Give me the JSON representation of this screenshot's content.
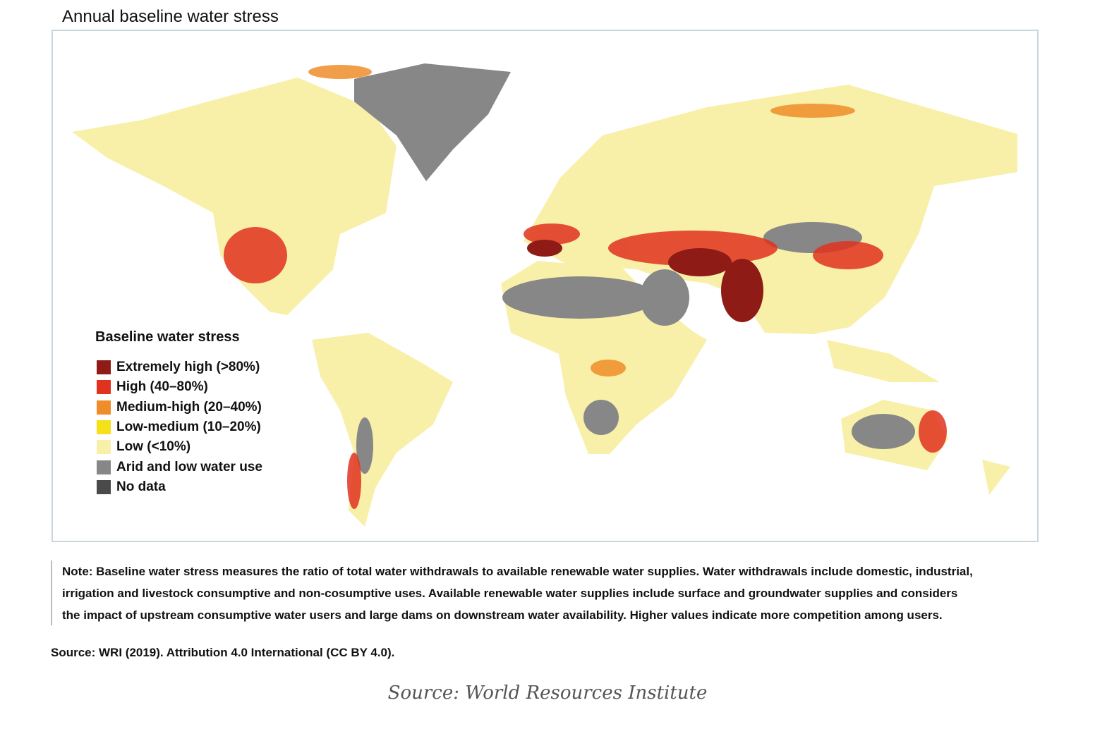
{
  "title": "Annual baseline water stress",
  "legend": {
    "title": "Baseline water stress",
    "items": [
      {
        "label": "Extremely high (>80%)",
        "color": "#8e1b16"
      },
      {
        "label": "High (40–80%)",
        "color": "#e0321f"
      },
      {
        "label": "Medium-high (20–40%)",
        "color": "#ef8d2a"
      },
      {
        "label": "Low-medium (10–20%)",
        "color": "#f6e01a"
      },
      {
        "label": "Low (<10%)",
        "color": "#f8f0a9"
      },
      {
        "label": "Arid and low water use",
        "color": "#878787"
      },
      {
        "label": "No data",
        "color": "#4a4a4a"
      }
    ]
  },
  "note": {
    "lines": [
      "Note: Baseline water stress measures the ratio of total water withdrawals to available renewable water supplies. Water withdrawals include domestic, industrial,",
      "irrigation and livestock consumptive and non-cosumptive uses. Available renewable water supplies include surface and groundwater supplies and considers",
      "the impact of upstream consumptive water users and large dams on downstream water availability. Higher values indicate more competition among users."
    ]
  },
  "source": "Source: WRI (2019). Attribution 4.0 International (CC BY 4.0).",
  "caption": "Source: World Resources Institute"
}
